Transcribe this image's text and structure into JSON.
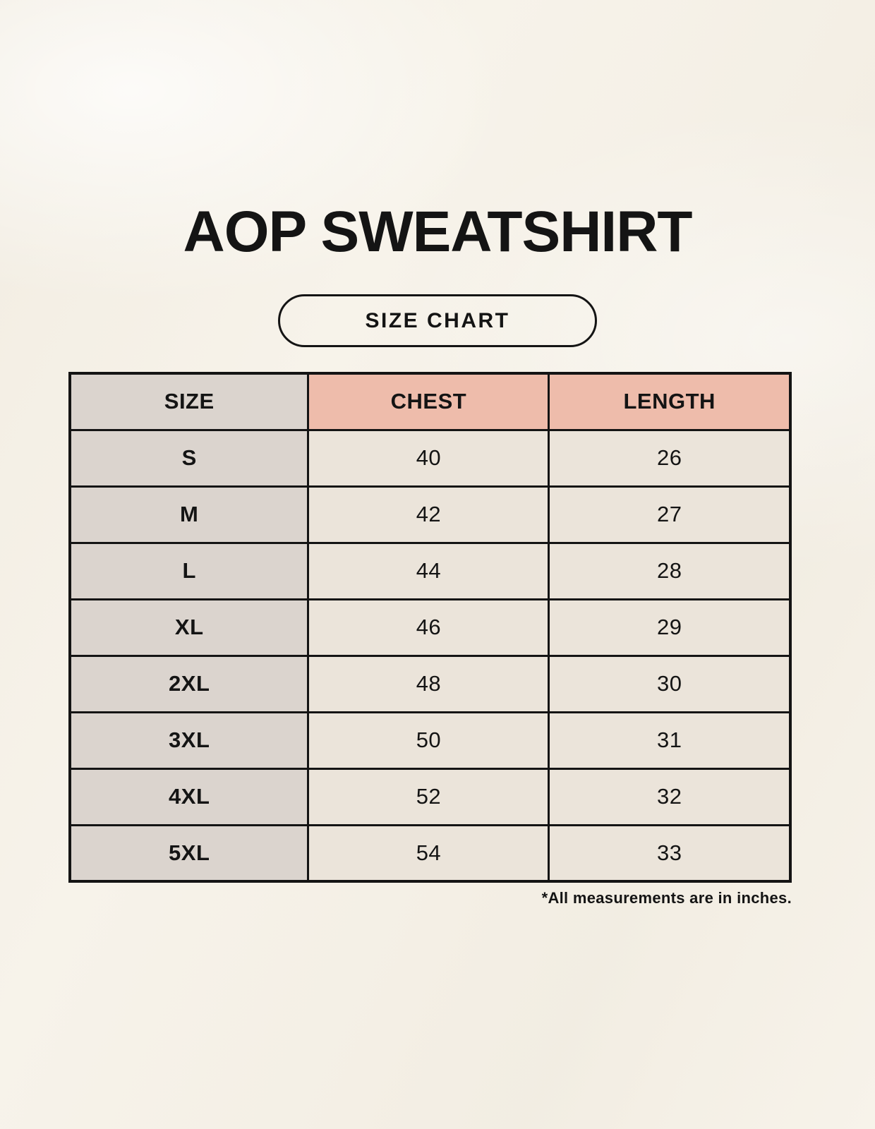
{
  "title": "AOP SWEATSHIRT",
  "badge_label": "SIZE CHART",
  "footnote": "*All measurements are in inches.",
  "colors": {
    "background": "#f7f3ea",
    "header_size_bg": "#dbd4ce",
    "header_measure_bg": "#eebcab",
    "size_col_bg": "#dbd4ce",
    "data_cell_bg": "#ebe4da",
    "border": "#141414",
    "text": "#141414"
  },
  "chart_data": {
    "type": "table",
    "title": "AOP SWEATSHIRT — SIZE CHART",
    "units": "inches",
    "columns": [
      "SIZE",
      "CHEST",
      "LENGTH"
    ],
    "rows": [
      [
        "S",
        40,
        26
      ],
      [
        "M",
        42,
        27
      ],
      [
        "L",
        44,
        28
      ],
      [
        "XL",
        46,
        29
      ],
      [
        "2XL",
        48,
        30
      ],
      [
        "3XL",
        50,
        31
      ],
      [
        "4XL",
        52,
        32
      ],
      [
        "5XL",
        54,
        33
      ]
    ]
  }
}
